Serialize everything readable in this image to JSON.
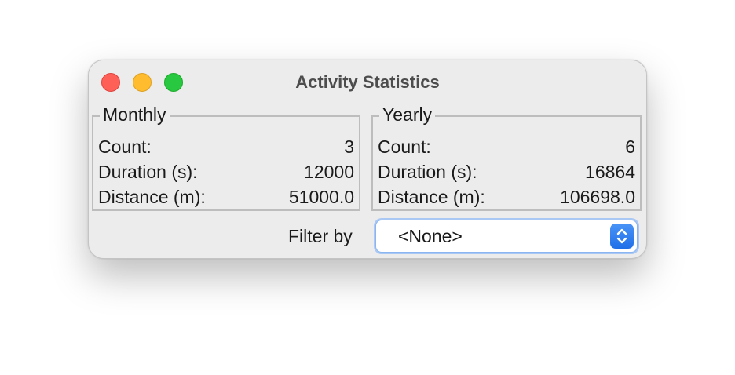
{
  "window": {
    "title": "Activity Statistics"
  },
  "monthly": {
    "legend": "Monthly",
    "rows": [
      {
        "label": "Count:",
        "value": "3"
      },
      {
        "label": "Duration (s):",
        "value": "12000"
      },
      {
        "label": "Distance (m):",
        "value": "51000.0"
      }
    ]
  },
  "yearly": {
    "legend": "Yearly",
    "rows": [
      {
        "label": "Count:",
        "value": "6"
      },
      {
        "label": "Duration (s):",
        "value": "16864"
      },
      {
        "label": "Distance (m):",
        "value": "106698.0"
      }
    ]
  },
  "filter": {
    "label": "Filter by",
    "selected": "<None>"
  },
  "icons": {
    "close": "close-traffic-light-icon",
    "minimize": "minimize-traffic-light-icon",
    "maximize": "maximize-traffic-light-icon",
    "stepper": "up-down-chevron-icon"
  },
  "colors": {
    "close": "#fe5f57",
    "minimize": "#febc2e",
    "maximize": "#28c840",
    "accent": "#1f6fe8"
  }
}
